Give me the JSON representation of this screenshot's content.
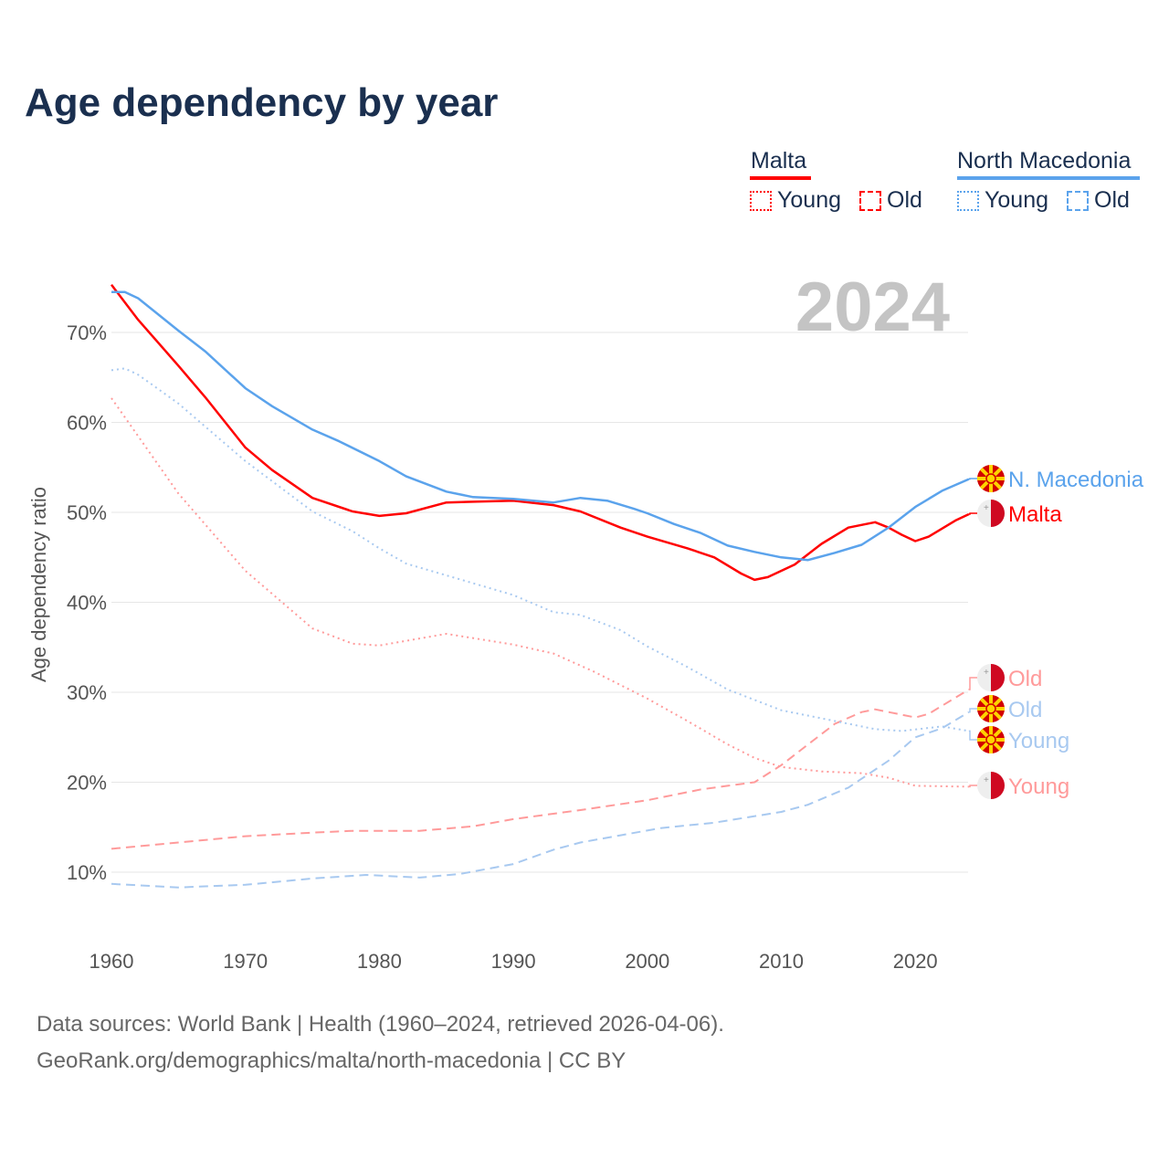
{
  "title": "Age dependency by year",
  "legend": {
    "groups": [
      {
        "name": "Malta",
        "color": "#ff0000",
        "items": [
          "Young",
          "Old"
        ]
      },
      {
        "name": "North Macedonia",
        "color": "#5ba3ec",
        "items": [
          "Young",
          "Old"
        ]
      }
    ]
  },
  "year_watermark": "2024",
  "sources": {
    "line1": "Data sources: World Bank | Health (1960–2024, retrieved 2026-04-06).",
    "line2": "GeoRank.org/demographics/malta/north-macedonia | CC BY"
  },
  "chart_data": {
    "type": "line",
    "title": "Age dependency by year",
    "xlabel": "",
    "ylabel": "Age dependency ratio",
    "xlim": [
      1960,
      2024
    ],
    "ylim": [
      4,
      77
    ],
    "x_ticks": [
      1960,
      1970,
      1980,
      1990,
      2000,
      2010,
      2020
    ],
    "y_ticks": [
      10,
      20,
      30,
      40,
      50,
      60,
      70
    ],
    "y_tick_labels": [
      "10%",
      "20%",
      "30%",
      "40%",
      "50%",
      "60%",
      "70%"
    ],
    "grid": "horizontal",
    "legend_position": "top-right",
    "series": [
      {
        "name": "Malta",
        "label": "Malta",
        "color": "#ff0000",
        "style": "solid",
        "flag": "malta",
        "points": [
          [
            1960,
            75.3
          ],
          [
            1962,
            71.4
          ],
          [
            1965,
            66.3
          ],
          [
            1967,
            62.8
          ],
          [
            1970,
            57.2
          ],
          [
            1972,
            54.7
          ],
          [
            1975,
            51.6
          ],
          [
            1978,
            50.1
          ],
          [
            1980,
            49.6
          ],
          [
            1982,
            49.9
          ],
          [
            1985,
            51.1
          ],
          [
            1990,
            51.3
          ],
          [
            1993,
            50.8
          ],
          [
            1995,
            50.1
          ],
          [
            1998,
            48.3
          ],
          [
            2000,
            47.3
          ],
          [
            2003,
            46.0
          ],
          [
            2005,
            45.0
          ],
          [
            2007,
            43.2
          ],
          [
            2008,
            42.5
          ],
          [
            2009,
            42.8
          ],
          [
            2011,
            44.2
          ],
          [
            2013,
            46.5
          ],
          [
            2015,
            48.3
          ],
          [
            2017,
            48.9
          ],
          [
            2018,
            48.3
          ],
          [
            2019,
            47.5
          ],
          [
            2020,
            46.8
          ],
          [
            2021,
            47.3
          ],
          [
            2023,
            49.1
          ],
          [
            2024,
            49.8
          ]
        ]
      },
      {
        "name": "North Macedonia",
        "label": "N. Macedonia",
        "color": "#5ba3ec",
        "style": "solid",
        "flag": "nmk",
        "points": [
          [
            1960,
            74.5
          ],
          [
            1961,
            74.5
          ],
          [
            1962,
            73.8
          ],
          [
            1965,
            70.2
          ],
          [
            1967,
            67.9
          ],
          [
            1970,
            63.8
          ],
          [
            1972,
            61.8
          ],
          [
            1975,
            59.2
          ],
          [
            1977,
            57.9
          ],
          [
            1980,
            55.7
          ],
          [
            1982,
            54.0
          ],
          [
            1985,
            52.3
          ],
          [
            1987,
            51.7
          ],
          [
            1990,
            51.5
          ],
          [
            1993,
            51.1
          ],
          [
            1995,
            51.6
          ],
          [
            1997,
            51.3
          ],
          [
            1999,
            50.4
          ],
          [
            2000,
            49.9
          ],
          [
            2002,
            48.7
          ],
          [
            2004,
            47.7
          ],
          [
            2006,
            46.3
          ],
          [
            2008,
            45.6
          ],
          [
            2010,
            45.0
          ],
          [
            2012,
            44.7
          ],
          [
            2014,
            45.5
          ],
          [
            2016,
            46.4
          ],
          [
            2018,
            48.3
          ],
          [
            2020,
            50.6
          ],
          [
            2022,
            52.4
          ],
          [
            2024,
            53.7
          ]
        ]
      },
      {
        "name": "Malta Young",
        "label": "Young",
        "color": "#ff9a9a",
        "style": "dotted",
        "flag": "malta",
        "points": [
          [
            1960,
            62.7
          ],
          [
            1965,
            52.1
          ],
          [
            1970,
            43.5
          ],
          [
            1975,
            37.1
          ],
          [
            1978,
            35.4
          ],
          [
            1980,
            35.2
          ],
          [
            1985,
            36.5
          ],
          [
            1990,
            35.3
          ],
          [
            1993,
            34.3
          ],
          [
            1996,
            32.3
          ],
          [
            2000,
            29.3
          ],
          [
            2003,
            26.8
          ],
          [
            2006,
            24.2
          ],
          [
            2008,
            22.7
          ],
          [
            2010,
            21.7
          ],
          [
            2013,
            21.2
          ],
          [
            2016,
            21.0
          ],
          [
            2018,
            20.5
          ],
          [
            2020,
            19.6
          ],
          [
            2024,
            19.5
          ]
        ]
      },
      {
        "name": "Malta Old",
        "label": "Old",
        "color": "#ff9a9a",
        "style": "dashed",
        "flag": "malta",
        "points": [
          [
            1960,
            12.6
          ],
          [
            1965,
            13.3
          ],
          [
            1970,
            14.0
          ],
          [
            1975,
            14.4
          ],
          [
            1978,
            14.6
          ],
          [
            1983,
            14.6
          ],
          [
            1987,
            15.1
          ],
          [
            1990,
            15.9
          ],
          [
            1995,
            16.9
          ],
          [
            2000,
            18.0
          ],
          [
            2004,
            19.2
          ],
          [
            2006,
            19.6
          ],
          [
            2008,
            20.0
          ],
          [
            2010,
            21.9
          ],
          [
            2012,
            24.2
          ],
          [
            2014,
            26.5
          ],
          [
            2016,
            27.8
          ],
          [
            2017,
            28.1
          ],
          [
            2019,
            27.5
          ],
          [
            2020,
            27.2
          ],
          [
            2021,
            27.6
          ],
          [
            2024,
            30.3
          ]
        ]
      },
      {
        "name": "North Macedonia Young",
        "label": "Young",
        "color": "#a8c9f0",
        "style": "dotted",
        "flag": "nmk",
        "points": [
          [
            1960,
            65.8
          ],
          [
            1961,
            66.0
          ],
          [
            1962,
            65.3
          ],
          [
            1965,
            62.1
          ],
          [
            1970,
            55.7
          ],
          [
            1975,
            50.1
          ],
          [
            1978,
            47.9
          ],
          [
            1980,
            46.0
          ],
          [
            1982,
            44.3
          ],
          [
            1985,
            43.0
          ],
          [
            1990,
            40.8
          ],
          [
            1993,
            38.9
          ],
          [
            1995,
            38.6
          ],
          [
            1998,
            36.9
          ],
          [
            2000,
            35.1
          ],
          [
            2003,
            32.8
          ],
          [
            2006,
            30.3
          ],
          [
            2010,
            28.0
          ],
          [
            2014,
            26.8
          ],
          [
            2017,
            25.9
          ],
          [
            2019,
            25.7
          ],
          [
            2022,
            26.2
          ],
          [
            2024,
            25.7
          ]
        ]
      },
      {
        "name": "North Macedonia Old",
        "label": "Old",
        "color": "#a8c9f0",
        "style": "dashed",
        "flag": "nmk",
        "points": [
          [
            1960,
            8.7
          ],
          [
            1965,
            8.3
          ],
          [
            1970,
            8.6
          ],
          [
            1975,
            9.3
          ],
          [
            1979,
            9.7
          ],
          [
            1983,
            9.4
          ],
          [
            1986,
            9.8
          ],
          [
            1990,
            10.9
          ],
          [
            1993,
            12.5
          ],
          [
            1995,
            13.3
          ],
          [
            1998,
            14.1
          ],
          [
            2001,
            14.9
          ],
          [
            2005,
            15.5
          ],
          [
            2010,
            16.7
          ],
          [
            2012,
            17.5
          ],
          [
            2015,
            19.4
          ],
          [
            2018,
            22.4
          ],
          [
            2020,
            25.0
          ],
          [
            2022,
            26.0
          ],
          [
            2024,
            27.8
          ]
        ]
      }
    ]
  }
}
